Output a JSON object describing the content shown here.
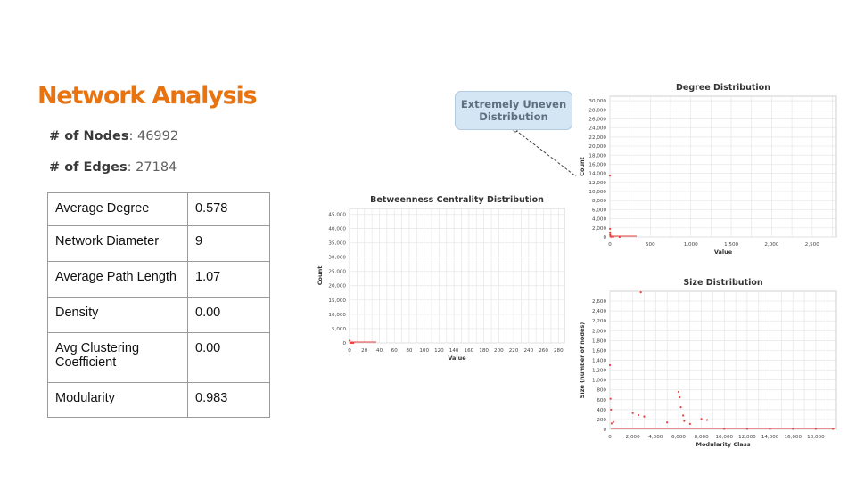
{
  "slide": {
    "title": "Network Analysis",
    "nodes_label": "# of Nodes",
    "nodes_value": ": 46992",
    "edges_label": "# of Edges",
    "edges_value": ": 27184"
  },
  "metrics_table": [
    {
      "metric": "Average Degree",
      "value": "0.578"
    },
    {
      "metric": "Network Diameter",
      "value": "9"
    },
    {
      "metric": "Average Path Length",
      "value": "1.07"
    },
    {
      "metric": "Density",
      "value": "0.00"
    },
    {
      "metric": "Avg Clustering Coefficient",
      "value": "0.00"
    },
    {
      "metric": "Modularity",
      "value": "0.983"
    }
  ],
  "callout": {
    "line1": "Extremely Uneven",
    "line2": "Distribution"
  },
  "colors": {
    "title": "#e8730f",
    "points": "#e8413f",
    "callout_bg": "#d4e5f4"
  },
  "chart_data": [
    {
      "type": "scatter",
      "title": "Degree Distribution",
      "xlabel": "Value",
      "ylabel": "Count",
      "xlim": [
        0,
        2800
      ],
      "ylim": [
        0,
        31000
      ],
      "xticks": [
        0,
        500,
        1000,
        1500,
        2000,
        2500
      ],
      "yticks": [
        0,
        2000,
        4000,
        6000,
        8000,
        10000,
        12000,
        14000,
        16000,
        18000,
        20000,
        22000,
        24000,
        26000,
        28000,
        30000
      ],
      "grid": true,
      "x": [
        0,
        1,
        2,
        3,
        5,
        8,
        15,
        40,
        120
      ],
      "y": [
        13500,
        1800,
        900,
        500,
        250,
        120,
        60,
        20,
        5
      ]
    },
    {
      "type": "scatter",
      "title": "Betweenness Centrality Distribution",
      "xlabel": "Value",
      "ylabel": "Count",
      "xlim": [
        0,
        288
      ],
      "ylim": [
        0,
        47000
      ],
      "xticks": [
        0,
        20,
        40,
        60,
        80,
        100,
        120,
        140,
        160,
        180,
        200,
        220,
        240,
        260,
        280
      ],
      "yticks": [
        0,
        5000,
        10000,
        15000,
        20000,
        25000,
        30000,
        35000,
        40000,
        45000
      ],
      "grid": true,
      "x": [
        0,
        1,
        2,
        3,
        5
      ],
      "y": [
        800,
        50,
        20,
        10,
        5
      ]
    },
    {
      "type": "scatter",
      "title": "Size Distribution",
      "xlabel": "Modularity Class",
      "ylabel": "Size (number of nodes)",
      "xlim": [
        0,
        19800
      ],
      "ylim": [
        0,
        2800
      ],
      "xticks": [
        0,
        2000,
        4000,
        6000,
        8000,
        10000,
        12000,
        14000,
        16000,
        18000
      ],
      "yticks": [
        0,
        200,
        400,
        600,
        800,
        1000,
        1200,
        1400,
        1600,
        1800,
        2000,
        2200,
        2400,
        2600
      ],
      "grid": true,
      "x": [
        2700,
        0,
        50,
        100,
        150,
        300,
        2000,
        2500,
        3000,
        5000,
        6000,
        6100,
        6200,
        6400,
        6500,
        7000,
        8000,
        8500,
        10000,
        12000,
        14000,
        16000,
        18000,
        19500
      ],
      "y": [
        2780,
        1300,
        620,
        400,
        120,
        150,
        330,
        290,
        260,
        140,
        760,
        650,
        450,
        280,
        170,
        110,
        210,
        190,
        10,
        10,
        10,
        10,
        10,
        10
      ]
    }
  ]
}
